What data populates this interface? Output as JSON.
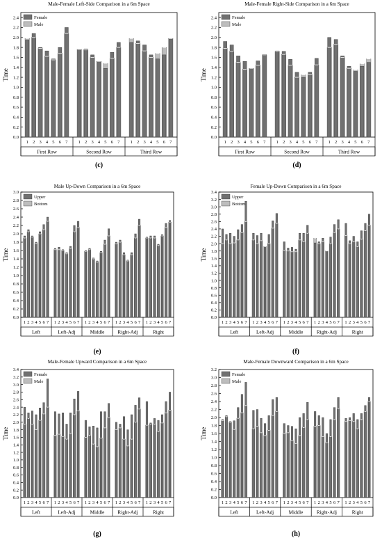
{
  "chart_data": [
    {
      "type": "bar",
      "title": "Male-Female Left-Side Comparison in a 6m Space",
      "caption": "(c)",
      "ylabel": "Time",
      "ylim": [
        0,
        2.5
      ],
      "yticks": [
        "0.0",
        "0.2",
        "0.4",
        "0.6",
        "0.8",
        "1.0",
        "1.2",
        "1.4",
        "1.6",
        "1.8",
        "2.0",
        "2.2",
        "2.4"
      ],
      "groups": [
        "First Row",
        "Second Row",
        "Third Row"
      ],
      "categories": [
        "1",
        "2",
        "3",
        "4",
        "5",
        "6",
        "7"
      ],
      "legend": "top-left",
      "series": [
        {
          "name": "Female",
          "values": [
            [
              1.95,
              2.08,
              1.8,
              1.73,
              1.57,
              1.8,
              2.2
            ],
            [
              1.75,
              1.77,
              1.65,
              1.52,
              1.38,
              1.7,
              1.9
            ],
            [
              1.9,
              1.93,
              1.85,
              1.65,
              1.57,
              1.65,
              1.97
            ]
          ]
        },
        {
          "name": "Male",
          "values": [
            [
              1.98,
              2.0,
              1.78,
              1.62,
              1.55,
              1.68,
              2.08
            ],
            [
              1.76,
              1.75,
              1.6,
              1.52,
              1.48,
              1.58,
              1.8
            ],
            [
              1.98,
              1.88,
              1.73,
              1.6,
              1.68,
              1.8,
              1.98
            ]
          ]
        }
      ]
    },
    {
      "type": "bar",
      "title": "Male-Female Right-Side Comparison in a 6m Space",
      "caption": "(d)",
      "ylabel": "Time",
      "ylim": [
        0,
        2.5
      ],
      "yticks": [
        "0.0",
        "0.2",
        "0.4",
        "0.6",
        "0.8",
        "1.0",
        "1.2",
        "1.4",
        "1.6",
        "1.8",
        "2.0",
        "2.2",
        "2.4"
      ],
      "groups": [
        "First Row",
        "Second Row",
        "Third Row"
      ],
      "categories": [
        "1",
        "2",
        "3",
        "4",
        "5",
        "6",
        "7"
      ],
      "legend": "top-left",
      "series": [
        {
          "name": "Female",
          "values": [
            [
              1.92,
              1.85,
              1.63,
              1.52,
              1.38,
              1.53,
              1.66
            ],
            [
              1.73,
              1.72,
              1.56,
              1.3,
              1.2,
              1.3,
              1.58
            ],
            [
              2.0,
              1.96,
              1.63,
              1.42,
              1.32,
              1.42,
              1.5
            ]
          ]
        },
        {
          "name": "Male",
          "values": [
            [
              1.78,
              1.72,
              1.5,
              1.36,
              1.38,
              1.44,
              1.65
            ],
            [
              1.72,
              1.66,
              1.44,
              1.2,
              1.25,
              1.25,
              1.45
            ],
            [
              1.8,
              1.86,
              1.6,
              1.38,
              1.35,
              1.47,
              1.57
            ]
          ]
        }
      ]
    },
    {
      "type": "bar",
      "title": "Male Up-Down Comparison in a 6m Space",
      "caption": "(e)",
      "ylabel": "Time",
      "ylim": [
        0,
        3.0
      ],
      "yticks": [
        "0.0",
        "0.2",
        "0.4",
        "0.6",
        "0.8",
        "1.0",
        "1.2",
        "1.4",
        "1.6",
        "1.8",
        "2.0",
        "2.2",
        "2.4",
        "2.6",
        "2.8",
        "3.0"
      ],
      "groups": [
        "Left",
        "Left-Adj",
        "Middle",
        "Right-Adj",
        "Right"
      ],
      "categories": [
        "1",
        "2",
        "3",
        "4",
        "5",
        "6",
        "7"
      ],
      "legend": "top-left",
      "series": [
        {
          "name": "Upper",
          "values": [
            [
              1.95,
              2.1,
              1.95,
              1.8,
              2.05,
              2.22,
              2.4
            ],
            [
              1.65,
              1.68,
              1.62,
              1.55,
              1.7,
              2.2,
              2.3
            ],
            [
              1.6,
              1.65,
              1.42,
              1.35,
              1.58,
              1.85,
              2.12
            ],
            [
              1.8,
              1.85,
              1.55,
              1.37,
              1.55,
              2.0,
              2.35
            ],
            [
              1.92,
              1.95,
              1.95,
              1.75,
              1.98,
              2.25,
              2.32
            ]
          ]
        },
        {
          "name": "Bottom",
          "values": [
            [
              1.9,
              2.05,
              1.92,
              1.77,
              2.0,
              2.1,
              2.3
            ],
            [
              1.62,
              1.62,
              1.6,
              1.52,
              1.65,
              2.05,
              2.15
            ],
            [
              1.58,
              1.62,
              1.4,
              1.32,
              1.55,
              1.75,
              1.95
            ],
            [
              1.76,
              1.8,
              1.5,
              1.35,
              1.5,
              1.9,
              2.2
            ],
            [
              1.9,
              1.9,
              1.9,
              1.72,
              1.95,
              2.15,
              2.28
            ]
          ]
        }
      ]
    },
    {
      "type": "bar",
      "title": "Female Up-Down Comparison in a 6m Space",
      "caption": "(f)",
      "ylabel": "Time",
      "ylim": [
        0,
        3.4
      ],
      "yticks": [
        "0.0",
        "0.2",
        "0.4",
        "0.6",
        "0.8",
        "1.0",
        "1.2",
        "1.4",
        "1.6",
        "1.8",
        "2.0",
        "2.2",
        "2.4",
        "2.6",
        "2.8",
        "3.0",
        "3.2",
        "3.4"
      ],
      "groups": [
        "Left",
        "Left-Adj",
        "Middle",
        "Right-Adj",
        "Right"
      ],
      "categories": [
        "1",
        "2",
        "3",
        "4",
        "5",
        "6",
        "7"
      ],
      "legend": "top-left",
      "series": [
        {
          "name": "Upper",
          "values": [
            [
              2.4,
              2.25,
              2.28,
              2.2,
              2.38,
              2.52,
              3.15
            ],
            [
              2.28,
              2.22,
              2.28,
              1.92,
              2.25,
              2.62,
              2.82
            ],
            [
              2.05,
              1.88,
              1.9,
              1.85,
              2.28,
              2.28,
              2.5
            ],
            [
              2.02,
              2.05,
              2.15,
              1.8,
              2.18,
              2.52,
              2.65
            ],
            [
              2.55,
              2.08,
              2.2,
              2.05,
              2.35,
              2.55,
              2.8
            ]
          ]
        },
        {
          "name": "Bottom",
          "values": [
            [
              2.0,
              2.1,
              2.0,
              2.02,
              2.1,
              2.3,
              2.6
            ],
            [
              2.1,
              2.0,
              2.08,
              1.92,
              2.0,
              2.42,
              2.55
            ],
            [
              1.82,
              1.8,
              1.78,
              1.78,
              2.1,
              2.05,
              2.28
            ],
            [
              2.15,
              2.0,
              2.05,
              1.8,
              2.0,
              2.3,
              2.4
            ],
            [
              2.22,
              2.0,
              2.05,
              1.92,
              2.12,
              2.35,
              2.5
            ]
          ]
        }
      ]
    },
    {
      "type": "bar",
      "title": "Male-Female Upward Comparison in a 6m Space",
      "caption": "(g)",
      "ylabel": "Time",
      "ylim": [
        0,
        3.4
      ],
      "yticks": [
        "0.0",
        "0.2",
        "0.4",
        "0.6",
        "0.8",
        "1.0",
        "1.2",
        "1.4",
        "1.6",
        "1.8",
        "2.0",
        "2.2",
        "2.4",
        "2.6",
        "2.8",
        "3.0",
        "3.2",
        "3.4"
      ],
      "groups": [
        "Left",
        "Left-Adj",
        "Middle",
        "Right-Adj",
        "Right"
      ],
      "categories": [
        "1",
        "2",
        "3",
        "4",
        "5",
        "6",
        "7"
      ],
      "legend": "top-left",
      "series": [
        {
          "name": "Female",
          "values": [
            [
              2.4,
              2.25,
              2.3,
              2.2,
              2.38,
              2.52,
              3.15
            ],
            [
              2.28,
              2.22,
              2.25,
              1.95,
              2.25,
              2.62,
              2.82
            ],
            [
              2.05,
              1.88,
              1.9,
              1.85,
              2.28,
              2.28,
              2.5
            ],
            [
              2.0,
              1.95,
              2.15,
              1.8,
              2.2,
              2.45,
              2.65
            ],
            [
              2.55,
              1.98,
              2.1,
              2.05,
              2.2,
              2.55,
              2.8
            ]
          ]
        },
        {
          "name": "Male",
          "values": [
            [
              1.95,
              2.1,
              1.95,
              1.8,
              2.05,
              2.22,
              2.4
            ],
            [
              1.65,
              1.68,
              1.62,
              1.55,
              1.7,
              2.2,
              2.3
            ],
            [
              1.6,
              1.65,
              1.42,
              1.35,
              1.58,
              1.85,
              2.12
            ],
            [
              1.8,
              1.85,
              1.55,
              1.37,
              1.55,
              2.0,
              2.35
            ],
            [
              1.92,
              1.95,
              1.95,
              1.75,
              1.98,
              2.25,
              2.32
            ]
          ]
        }
      ]
    },
    {
      "type": "bar",
      "title": "Male-Female Downward Comparison in a 6m Space",
      "caption": "(h)",
      "ylabel": "Time",
      "ylim": [
        0,
        3.2
      ],
      "yticks": [
        "0.0",
        "0.2",
        "0.4",
        "0.6",
        "0.8",
        "1.0",
        "1.2",
        "1.4",
        "1.6",
        "1.8",
        "2.0",
        "2.2",
        "2.4",
        "2.6",
        "2.8",
        "3.0",
        "3.2"
      ],
      "groups": [
        "Left",
        "Left-Adj",
        "Middle",
        "Right-Adj",
        "Right"
      ],
      "categories": [
        "1",
        "2",
        "3",
        "4",
        "5",
        "6",
        "7"
      ],
      "legend": "top-left",
      "series": [
        {
          "name": "Female",
          "values": [
            [
              1.95,
              2.05,
              1.9,
              1.92,
              2.25,
              2.58,
              2.88
            ],
            [
              2.18,
              2.2,
              1.98,
              1.85,
              2.05,
              2.45,
              2.5
            ],
            [
              1.85,
              1.8,
              1.78,
              1.72,
              2.0,
              2.1,
              2.38
            ],
            [
              2.15,
              2.05,
              2.0,
              1.6,
              1.95,
              2.25,
              2.5
            ],
            [
              1.98,
              2.0,
              2.1,
              1.95,
              2.1,
              2.3,
              2.5
            ]
          ]
        },
        {
          "name": "Male",
          "values": [
            [
              1.92,
              2.02,
              1.88,
              1.7,
              1.98,
              2.12,
              2.3
            ],
            [
              1.72,
              1.78,
              1.62,
              1.55,
              1.68,
              2.05,
              2.15
            ],
            [
              1.6,
              1.62,
              1.42,
              1.35,
              1.55,
              1.75,
              1.95
            ],
            [
              1.78,
              1.8,
              1.52,
              1.37,
              1.52,
              1.95,
              2.22
            ],
            [
              1.9,
              1.92,
              1.9,
              1.72,
              1.95,
              2.15,
              2.4
            ]
          ]
        }
      ]
    }
  ],
  "colors": {
    "primary": "#707070",
    "secondary": "#bdbdbd",
    "axis": "#000000"
  }
}
